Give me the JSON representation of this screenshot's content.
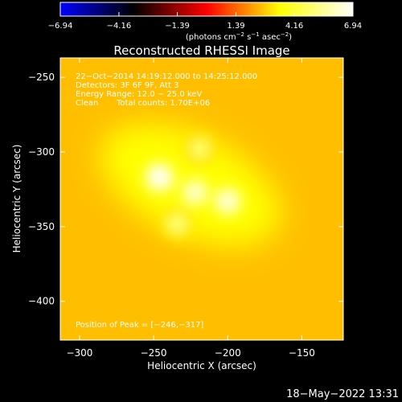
{
  "chart_data": {
    "type": "heatmap",
    "title": "Reconstructed RHESSI Image",
    "xlabel": "Heliocentric X (arcsec)",
    "ylabel": "Heliocentric Y (arcsec)",
    "xlim": [
      -313,
      -122
    ],
    "ylim": [
      -426,
      -237
    ],
    "xticks": [
      -300,
      -250,
      -200,
      -150
    ],
    "yticks": [
      -250,
      -300,
      -350,
      -400
    ],
    "xtick_labels": [
      "−300",
      "−250",
      "−200",
      "−150"
    ],
    "ytick_labels": [
      "−250",
      "−300",
      "−350",
      "−400"
    ],
    "colorbar": {
      "range": [
        -6.94,
        6.94
      ],
      "ticks": [
        -6.94,
        -4.16,
        -1.39,
        1.39,
        4.16,
        6.94
      ],
      "tick_labels": [
        "−6.94",
        "−4.16",
        "−1.39",
        "1.39",
        "4.16",
        "6.94"
      ],
      "units_prefix": "(photons cm",
      "units_exp1": "−2",
      "units_mid1": " s",
      "units_exp2": "−1",
      "units_mid2": " asec",
      "units_exp3": "−2",
      "units_suffix": ")",
      "colormap": [
        "#0000ff",
        "#000000",
        "#ff0000",
        "#ffff00",
        "#ffffff"
      ]
    },
    "annotations": {
      "line1": "22−Oct−2014 14:19:12.000 to 14:25:12.000",
      "line2": "Detectors: 3F 6F 9F, Att 3",
      "line3": "Energy Range: 12.0 − 25.0 keV",
      "line4_a": "Clean",
      "line4_b": "Total counts: 1.70E+06",
      "peak": "Position of Peak = [−246,−317]"
    },
    "sources": [
      {
        "x": -246,
        "y": -317,
        "intensity": 6.9
      },
      {
        "x": -222,
        "y": -327,
        "intensity": 6.2
      },
      {
        "x": -200,
        "y": -333,
        "intensity": 6.4
      },
      {
        "x": -219,
        "y": -298,
        "intensity": 4.9
      },
      {
        "x": -234,
        "y": -348,
        "intensity": 5.0
      }
    ],
    "background_level": 2.6,
    "timestamp": "18−May−2022 13:31"
  }
}
